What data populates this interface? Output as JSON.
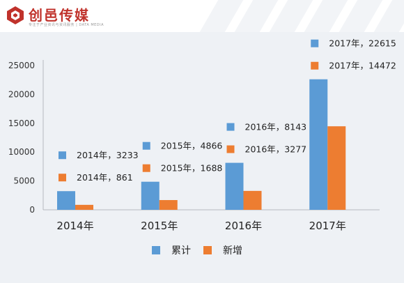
{
  "brand": {
    "name": "创邑传媒",
    "tagline": "专注于产业资讯与资讯服务 | DATA MEDIA",
    "accent": "#c0322b"
  },
  "colors": {
    "series_1": "#5b9bd5",
    "series_2": "#ed7d31",
    "background": "#eef1f5"
  },
  "chart_data": {
    "type": "bar",
    "categories": [
      "2014年",
      "2015年",
      "2016年",
      "2017年"
    ],
    "series": [
      {
        "name": "累计",
        "values": [
          3233,
          4866,
          8143,
          22615
        ]
      },
      {
        "name": "新增",
        "values": [
          861,
          1688,
          3277,
          14472
        ]
      }
    ],
    "annotations": [
      [
        "2014年，3233",
        "2014年，861"
      ],
      [
        "2015年，4866",
        "2015年，1688"
      ],
      [
        "2016年，8143",
        "2016年，3277"
      ],
      [
        "2017年，22615",
        "2017年，14472"
      ]
    ],
    "y_ticks": [
      "0",
      "5000",
      "10000",
      "15000",
      "20000",
      "25000"
    ],
    "ylim": [
      0,
      25000
    ],
    "grid": false,
    "legend_position": "bottom-center"
  }
}
